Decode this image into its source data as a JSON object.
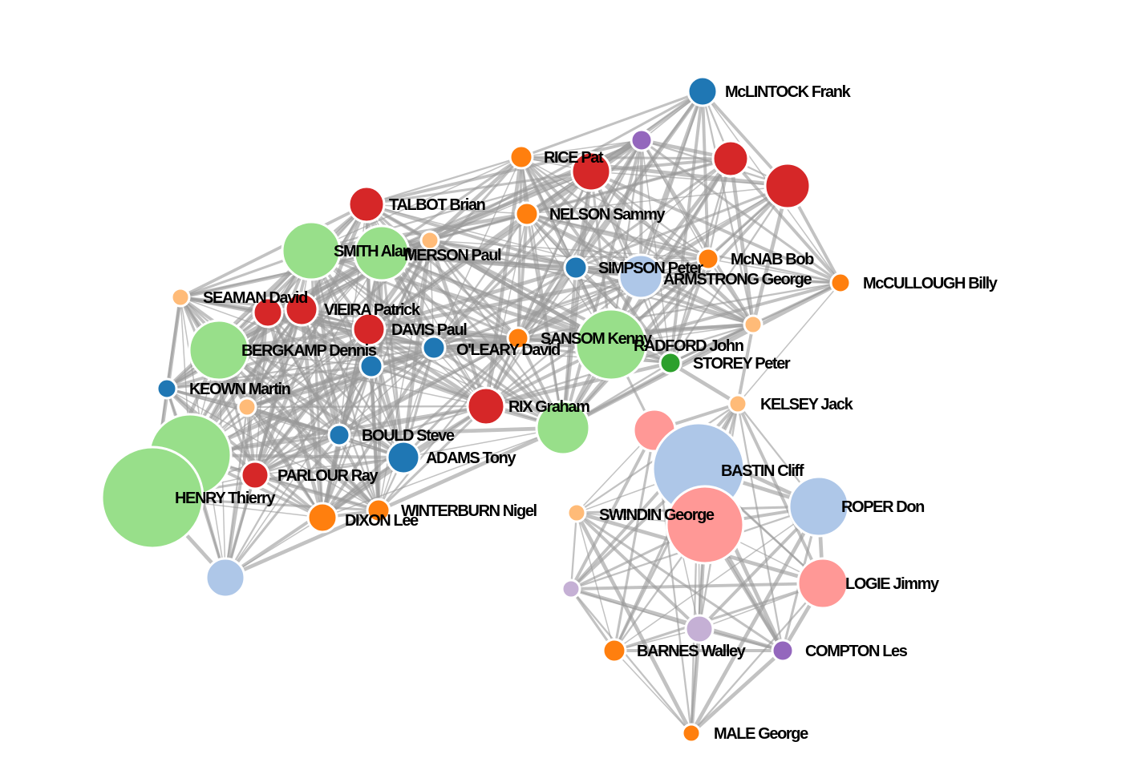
{
  "nodes": [
    {
      "id": "mclintock",
      "label": "McLINTOCK Frank",
      "color": "#1f77b4"
    },
    {
      "id": "purple-top",
      "label": "",
      "color": "#9467bd"
    },
    {
      "id": "rice",
      "label": "RICE Pat",
      "color": "#ff7f0e"
    },
    {
      "id": "red-top-a",
      "label": "",
      "color": "#d62728"
    },
    {
      "id": "red-top-b",
      "label": "",
      "color": "#d62728"
    },
    {
      "id": "red-top-c",
      "label": "",
      "color": "#d62728"
    },
    {
      "id": "talbot",
      "label": "TALBOT Brian",
      "color": "#d62728"
    },
    {
      "id": "nelson",
      "label": "NELSON Sammy",
      "color": "#ff7f0e"
    },
    {
      "id": "smith",
      "label": "SMITH Alan",
      "color": "#98df8a"
    },
    {
      "id": "green-mid",
      "label": "",
      "color": "#98df8a"
    },
    {
      "id": "merson",
      "label": "MERSON Paul",
      "color": "#ffbb78"
    },
    {
      "id": "simpson",
      "label": "SIMPSON Peter",
      "color": "#1f77b4"
    },
    {
      "id": "armstrong",
      "label": "ARMSTRONG George",
      "color": "#aec7e8"
    },
    {
      "id": "mcnab",
      "label": "McNAB Bob",
      "color": "#ff7f0e"
    },
    {
      "id": "mccullough",
      "label": "McCULLOUGH Billy",
      "color": "#ff7f0e"
    },
    {
      "id": "seaman",
      "label": "SEAMAN David",
      "color": "#ffbb78"
    },
    {
      "id": "red-seaman",
      "label": "",
      "color": "#d62728"
    },
    {
      "id": "vieira",
      "label": "VIEIRA Patrick",
      "color": "#d62728"
    },
    {
      "id": "davis",
      "label": "DAVIS Paul",
      "color": "#d62728"
    },
    {
      "id": "bergkamp",
      "label": "BERGKAMP Dennis",
      "color": "#98df8a"
    },
    {
      "id": "oleary",
      "label": "O'LEARY David",
      "color": "#1f77b4"
    },
    {
      "id": "blue-small",
      "label": "",
      "color": "#1f77b4"
    },
    {
      "id": "sansom",
      "label": "SANSOM Kenny",
      "color": "#ff7f0e"
    },
    {
      "id": "green-sansom",
      "label": "",
      "color": "#98df8a"
    },
    {
      "id": "radford",
      "label": "RADFORD John",
      "color": "#ffbb78"
    },
    {
      "id": "storey",
      "label": "STOREY Peter",
      "color": "#2ca02c"
    },
    {
      "id": "keown",
      "label": "KEOWN Martin",
      "color": "#1f77b4"
    },
    {
      "id": "peach-small",
      "label": "",
      "color": "#ffbb78"
    },
    {
      "id": "rix",
      "label": "RIX Graham",
      "color": "#d62728"
    },
    {
      "id": "green-rix",
      "label": "",
      "color": "#98df8a"
    },
    {
      "id": "kelsey",
      "label": "KELSEY Jack",
      "color": "#ffbb78"
    },
    {
      "id": "bould",
      "label": "BOULD Steve",
      "color": "#1f77b4"
    },
    {
      "id": "adams",
      "label": "ADAMS Tony",
      "color": "#1f77b4"
    },
    {
      "id": "green-big",
      "label": "",
      "color": "#98df8a"
    },
    {
      "id": "parlour",
      "label": "PARLOUR Ray",
      "color": "#d62728"
    },
    {
      "id": "henry",
      "label": "HENRY Thierry",
      "color": "#98df8a"
    },
    {
      "id": "dixon",
      "label": "DIXON Lee",
      "color": "#ff7f0e"
    },
    {
      "id": "winterburn",
      "label": "WINTERBURN Nigel",
      "color": "#ff7f0e"
    },
    {
      "id": "blue-bottom",
      "label": "",
      "color": "#aec7e8"
    },
    {
      "id": "pink-a",
      "label": "",
      "color": "#ff9896"
    },
    {
      "id": "bastin",
      "label": "BASTIN Cliff",
      "color": "#aec7e8"
    },
    {
      "id": "swindin",
      "label": "SWINDIN George",
      "color": "#ffbb78"
    },
    {
      "id": "pink-b",
      "label": "",
      "color": "#ff9896"
    },
    {
      "id": "roper",
      "label": "ROPER Don",
      "color": "#aec7e8"
    },
    {
      "id": "logie",
      "label": "LOGIE Jimmy",
      "color": "#ff9896"
    },
    {
      "id": "lilac-a",
      "label": "",
      "color": "#c5b0d5"
    },
    {
      "id": "lilac-b",
      "label": "",
      "color": "#c5b0d5"
    },
    {
      "id": "barnes",
      "label": "BARNES Walley",
      "color": "#ff7f0e"
    },
    {
      "id": "compton",
      "label": "COMPTON Les",
      "color": "#9467bd"
    },
    {
      "id": "male",
      "label": "MALE George",
      "color": "#ff7f0e"
    }
  ]
}
